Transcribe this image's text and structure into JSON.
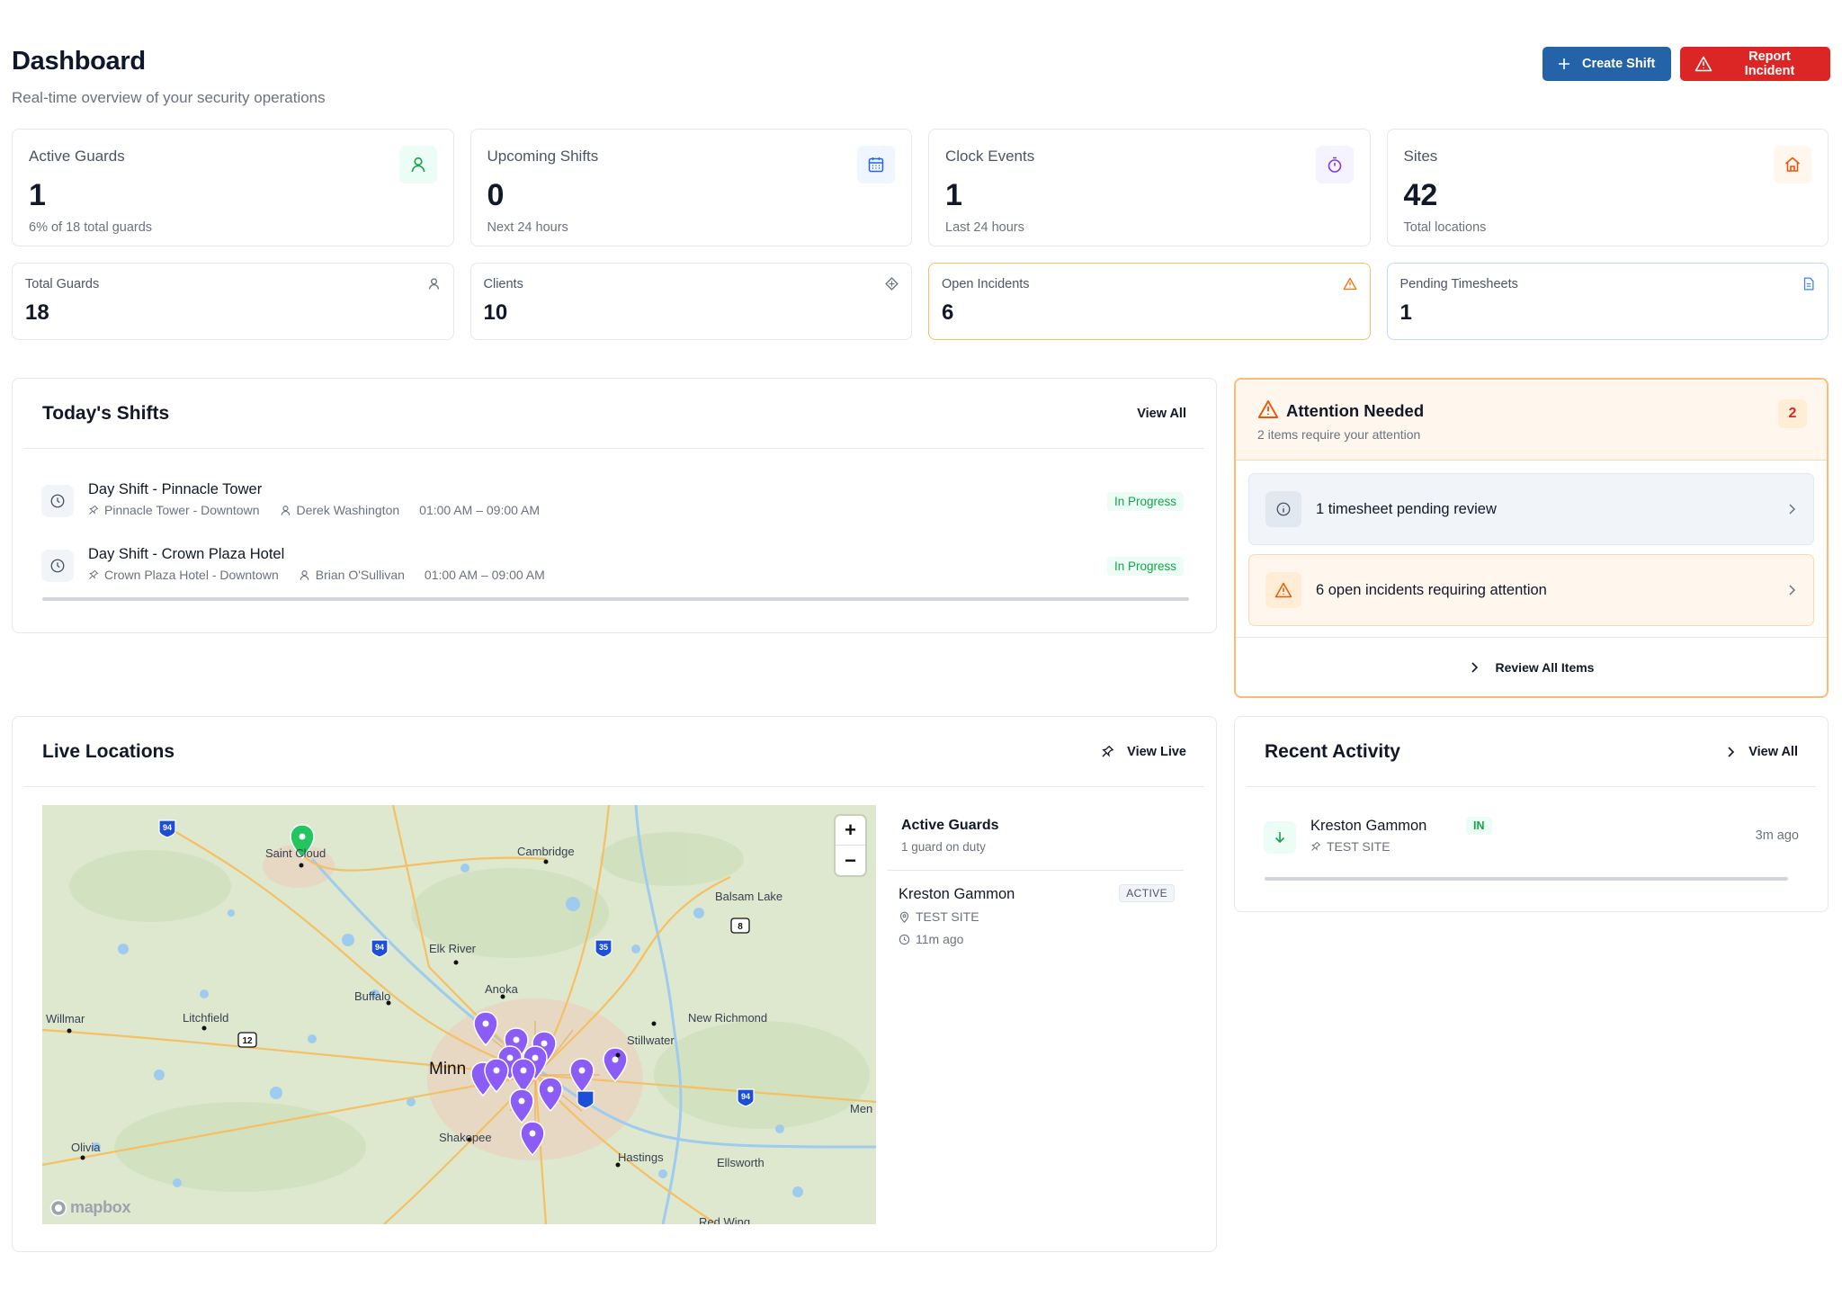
{
  "header": {
    "title": "Dashboard",
    "subtitle": "Real-time overview of your security operations",
    "create_shift": "Create Shift",
    "report_incident": "Report Incident"
  },
  "stats_primary": [
    {
      "label": "Active Guards",
      "value": "1",
      "sub": "6% of 18 total guards",
      "icon": "user-icon",
      "color": "#16a34a"
    },
    {
      "label": "Upcoming Shifts",
      "value": "0",
      "sub": "Next 24 hours",
      "icon": "calendar-icon",
      "color": "#2563eb"
    },
    {
      "label": "Clock Events",
      "value": "1",
      "sub": "Last 24 hours",
      "icon": "timer-icon",
      "color": "#7c3aed"
    },
    {
      "label": "Sites",
      "value": "42",
      "sub": "Total locations",
      "icon": "home-icon",
      "color": "#ea580c"
    }
  ],
  "stats_secondary": [
    {
      "label": "Total Guards",
      "value": "18",
      "icon": "user-icon"
    },
    {
      "label": "Clients",
      "value": "10",
      "icon": "diamond-icon"
    },
    {
      "label": "Open Incidents",
      "value": "6",
      "icon": "warning-icon"
    },
    {
      "label": "Pending Timesheets",
      "value": "1",
      "icon": "document-icon"
    }
  ],
  "shifts": {
    "title": "Today's Shifts",
    "view_all": "View All",
    "items": [
      {
        "title": "Day Shift - Pinnacle Tower",
        "site": "Pinnacle Tower - Downtown",
        "guard": "Derek Washington",
        "time": "01:00 AM – 09:00 AM",
        "status": "In Progress"
      },
      {
        "title": "Day Shift - Crown Plaza Hotel",
        "site": "Crown Plaza Hotel - Downtown",
        "guard": "Brian O'Sullivan",
        "time": "01:00 AM – 09:00 AM",
        "status": "In Progress"
      }
    ]
  },
  "attention": {
    "title": "Attention Needed",
    "subtitle": "2 items require your attention",
    "count": "2",
    "items": [
      {
        "text": "1 timesheet pending review"
      },
      {
        "text": "6 open incidents requiring attention"
      }
    ],
    "review_all": "Review All Items"
  },
  "live_locations": {
    "title": "Live Locations",
    "view_live": "View Live",
    "map": {
      "zoom_in": "+",
      "zoom_out": "−",
      "attribution": "mapbox",
      "labels": [
        "Saint Cloud",
        "Cambridge",
        "Balsam Lake",
        "Elk River",
        "Anoka",
        "Buffalo",
        "Litchfield",
        "Willmar",
        "New Richmond",
        "Stillwater",
        "Minn",
        "Shakopee",
        "Hastings",
        "Ellsworth",
        "Olivia",
        "Men",
        "Red Wing"
      ],
      "shields": [
        "94",
        "94",
        "35",
        "8",
        "12",
        "94"
      ]
    },
    "side": {
      "title": "Active Guards",
      "subtitle": "1 guard on duty",
      "guard_name": "Kreston Gammon",
      "guard_status": "ACTIVE",
      "guard_site": "TEST SITE",
      "guard_time": "11m ago"
    }
  },
  "recent_activity": {
    "title": "Recent Activity",
    "view_all": "View All",
    "items": [
      {
        "name": "Kreston Gammon",
        "type": "IN",
        "site": "TEST SITE",
        "time": "3m ago"
      }
    ]
  }
}
